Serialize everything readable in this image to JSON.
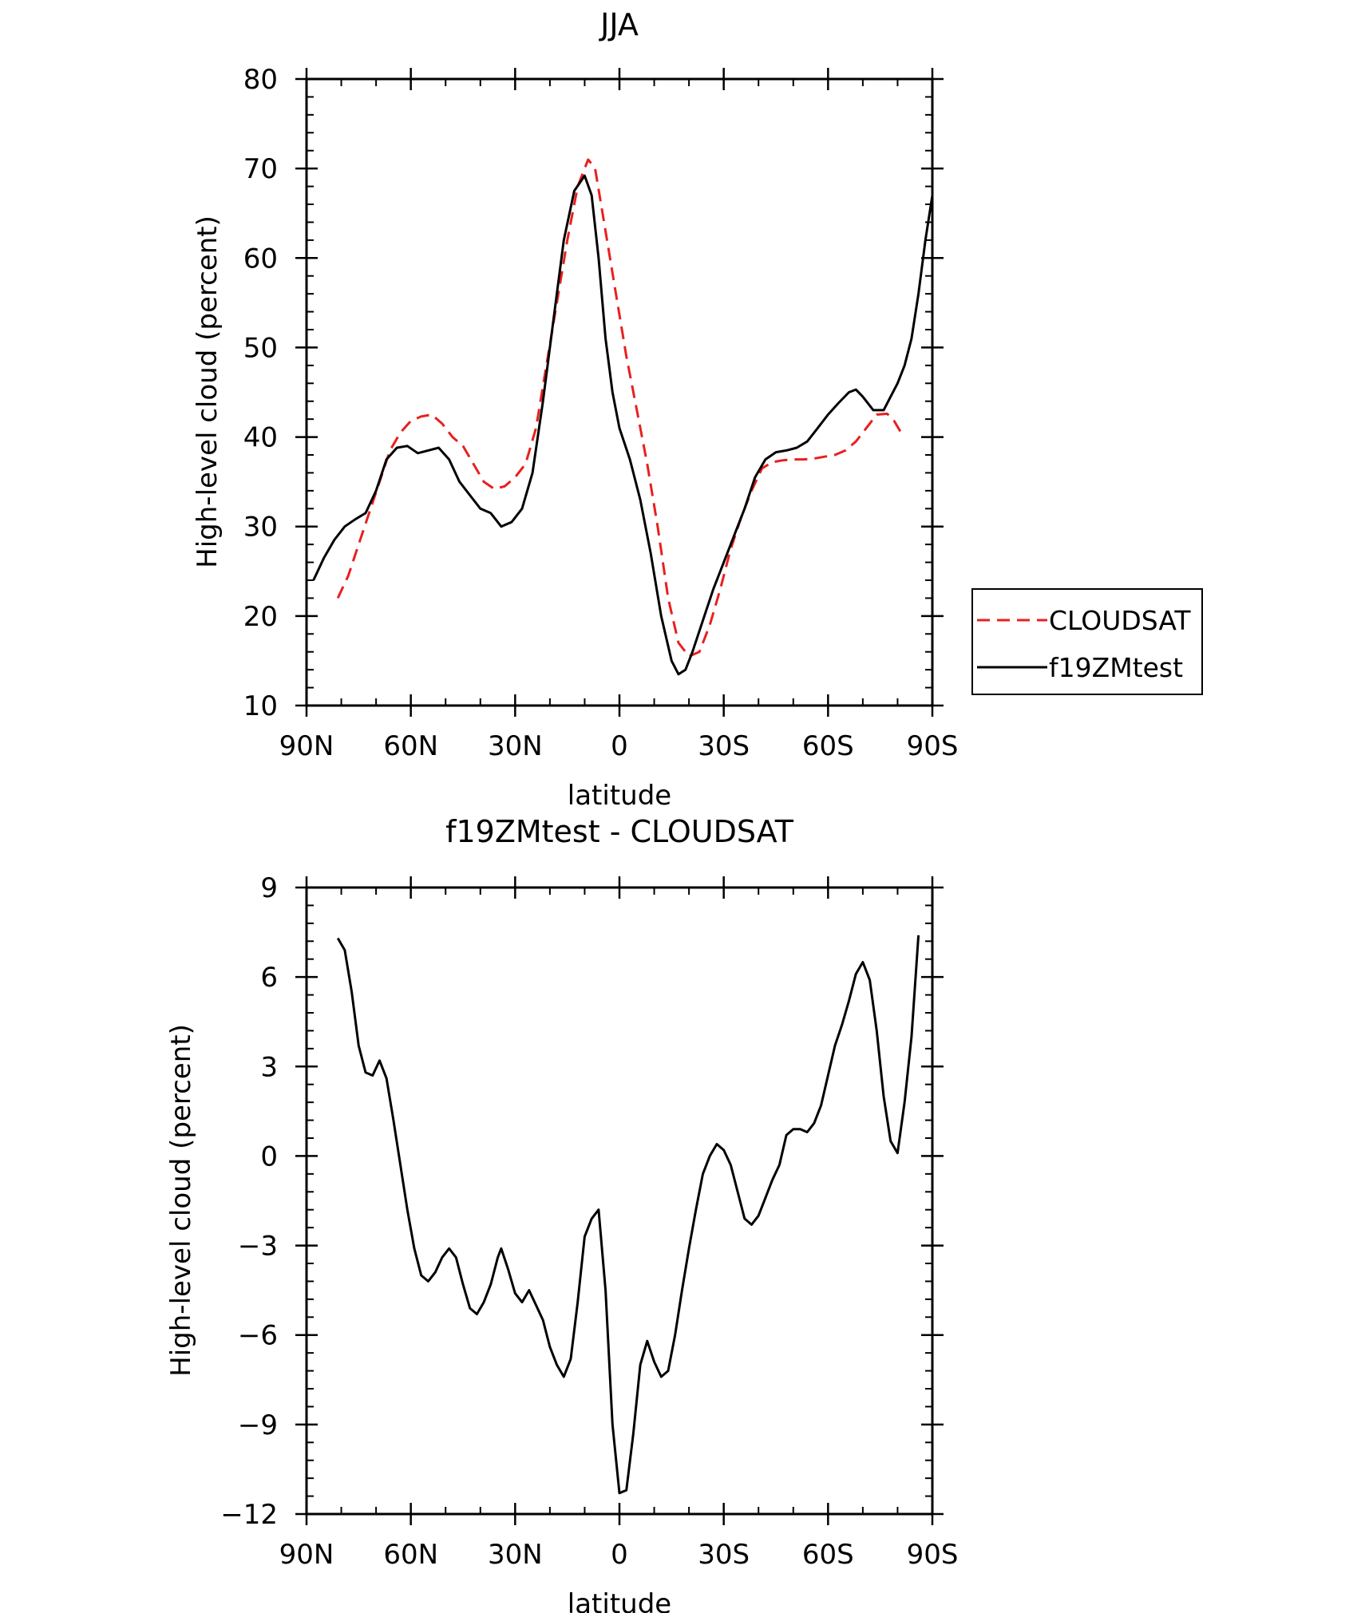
{
  "chart_data": [
    {
      "type": "line",
      "title": "JJA",
      "xlabel": "latitude",
      "ylabel": "High-level cloud (percent)",
      "xlim": [
        90,
        -90
      ],
      "ylim": [
        10,
        80
      ],
      "yticks": [
        "80",
        "70",
        "60",
        "50",
        "40",
        "30",
        "20",
        "10"
      ],
      "xticks": [
        "90N",
        "60N",
        "30N",
        "0",
        "30S",
        "60S",
        "90S"
      ],
      "grid": false,
      "legend": {
        "position": "right",
        "entries": [
          {
            "label": "CLOUDSAT",
            "color": "#e8201e",
            "dash": "dashed"
          },
          {
            "label": "f19ZMtest",
            "color": "#000000",
            "dash": "solid"
          }
        ]
      },
      "series": [
        {
          "name": "CLOUDSAT",
          "color": "#e8201e",
          "dash": "dashed",
          "points": [
            [
              81,
              22
            ],
            [
              78,
              24.5
            ],
            [
              75,
              28
            ],
            [
              72,
              31.5
            ],
            [
              69,
              35
            ],
            [
              66,
              38.5
            ],
            [
              63,
              40.5
            ],
            [
              60,
              41.8
            ],
            [
              57,
              42.3
            ],
            [
              54,
              42.5
            ],
            [
              51,
              41.5
            ],
            [
              48,
              40
            ],
            [
              45,
              39
            ],
            [
              42,
              37
            ],
            [
              39,
              35
            ],
            [
              36,
              34.2
            ],
            [
              33,
              34.5
            ],
            [
              30,
              35.5
            ],
            [
              27,
              37
            ],
            [
              24,
              41
            ],
            [
              21,
              48
            ],
            [
              18,
              55
            ],
            [
              15,
              62
            ],
            [
              12,
              68
            ],
            [
              9,
              71
            ],
            [
              7,
              70
            ],
            [
              4,
              63
            ],
            [
              1,
              56
            ],
            [
              -2,
              49
            ],
            [
              -5,
              43
            ],
            [
              -8,
              37
            ],
            [
              -11,
              30
            ],
            [
              -14,
              22
            ],
            [
              -17,
              17
            ],
            [
              -20,
              15.5
            ],
            [
              -23,
              16
            ],
            [
              -26,
              19
            ],
            [
              -29,
              23
            ],
            [
              -32,
              27.5
            ],
            [
              -35,
              31
            ],
            [
              -38,
              34
            ],
            [
              -41,
              36.5
            ],
            [
              -44,
              37.2
            ],
            [
              -47,
              37.4
            ],
            [
              -50,
              37.5
            ],
            [
              -53,
              37.5
            ],
            [
              -56,
              37.6
            ],
            [
              -59,
              37.8
            ],
            [
              -62,
              38
            ],
            [
              -65,
              38.5
            ],
            [
              -68,
              39.5
            ],
            [
              -71,
              41
            ],
            [
              -74,
              42.5
            ],
            [
              -77,
              42.6
            ],
            [
              -79,
              41.8
            ],
            [
              -81,
              40.5
            ]
          ]
        },
        {
          "name": "f19ZMtest",
          "color": "#000000",
          "dash": "solid",
          "points": [
            [
              88,
              24
            ],
            [
              85,
              26.5
            ],
            [
              82,
              28.5
            ],
            [
              79,
              30
            ],
            [
              76,
              30.8
            ],
            [
              73,
              31.5
            ],
            [
              70,
              34
            ],
            [
              67,
              37.5
            ],
            [
              64,
              38.8
            ],
            [
              61,
              39
            ],
            [
              58,
              38.2
            ],
            [
              55,
              38.5
            ],
            [
              52,
              38.8
            ],
            [
              49,
              37.5
            ],
            [
              46,
              35
            ],
            [
              43,
              33.5
            ],
            [
              40,
              32
            ],
            [
              37,
              31.5
            ],
            [
              34,
              30
            ],
            [
              31,
              30.5
            ],
            [
              28,
              32
            ],
            [
              25,
              36
            ],
            [
              22,
              44
            ],
            [
              19,
              53
            ],
            [
              16,
              62
            ],
            [
              13,
              67.5
            ],
            [
              10,
              69.2
            ],
            [
              8,
              67
            ],
            [
              6,
              60
            ],
            [
              4,
              51
            ],
            [
              2,
              45
            ],
            [
              0,
              41
            ],
            [
              -3,
              37.5
            ],
            [
              -6,
              33
            ],
            [
              -9,
              27
            ],
            [
              -12,
              20
            ],
            [
              -15,
              15
            ],
            [
              -17,
              13.5
            ],
            [
              -19,
              14
            ],
            [
              -21,
              16
            ],
            [
              -24,
              19.5
            ],
            [
              -27,
              23
            ],
            [
              -30,
              26
            ],
            [
              -33,
              29
            ],
            [
              -36,
              32
            ],
            [
              -39,
              35.5
            ],
            [
              -42,
              37.5
            ],
            [
              -45,
              38.3
            ],
            [
              -48,
              38.5
            ],
            [
              -51,
              38.8
            ],
            [
              -54,
              39.5
            ],
            [
              -57,
              41
            ],
            [
              -60,
              42.5
            ],
            [
              -63,
              43.8
            ],
            [
              -66,
              45
            ],
            [
              -68,
              45.3
            ],
            [
              -70,
              44.5
            ],
            [
              -73,
              43
            ],
            [
              -76,
              43
            ],
            [
              -78,
              44.5
            ],
            [
              -80,
              46
            ],
            [
              -82,
              48
            ],
            [
              -84,
              51
            ],
            [
              -86,
              56
            ],
            [
              -88,
              62
            ],
            [
              -90,
              67
            ]
          ]
        }
      ]
    },
    {
      "type": "line",
      "title": "f19ZMtest - CLOUDSAT",
      "xlabel": "latitude",
      "ylabel": "High-level cloud (percent)",
      "xlim": [
        90,
        -90
      ],
      "ylim": [
        -12,
        9
      ],
      "yticks": [
        "9",
        "6",
        "3",
        "0",
        "−3",
        "−6",
        "−9",
        "−12"
      ],
      "xticks": [
        "90N",
        "60N",
        "30N",
        "0",
        "30S",
        "60S",
        "90S"
      ],
      "grid": false,
      "series": [
        {
          "color": "#000000",
          "dash": "solid",
          "points": [
            [
              81,
              7.3
            ],
            [
              79,
              6.9
            ],
            [
              77,
              5.5
            ],
            [
              75,
              3.7
            ],
            [
              73,
              2.8
            ],
            [
              71,
              2.7
            ],
            [
              69,
              3.2
            ],
            [
              67,
              2.6
            ],
            [
              65,
              1.2
            ],
            [
              63,
              -0.3
            ],
            [
              61,
              -1.8
            ],
            [
              59,
              -3.1
            ],
            [
              57,
              -4
            ],
            [
              55,
              -4.2
            ],
            [
              53,
              -3.9
            ],
            [
              51,
              -3.4
            ],
            [
              49,
              -3.1
            ],
            [
              47,
              -3.4
            ],
            [
              45,
              -4.3
            ],
            [
              43,
              -5.1
            ],
            [
              41,
              -5.3
            ],
            [
              39,
              -4.9
            ],
            [
              37,
              -4.3
            ],
            [
              35,
              -3.4
            ],
            [
              34,
              -3.1
            ],
            [
              32,
              -3.8
            ],
            [
              30,
              -4.6
            ],
            [
              28,
              -4.9
            ],
            [
              26,
              -4.5
            ],
            [
              24,
              -5
            ],
            [
              22,
              -5.5
            ],
            [
              20,
              -6.4
            ],
            [
              18,
              -7
            ],
            [
              16,
              -7.4
            ],
            [
              14,
              -6.8
            ],
            [
              12,
              -4.9
            ],
            [
              10,
              -2.7
            ],
            [
              8,
              -2.1
            ],
            [
              6,
              -1.8
            ],
            [
              4,
              -4.5
            ],
            [
              2,
              -9
            ],
            [
              0,
              -11.3
            ],
            [
              -2,
              -11.2
            ],
            [
              -4,
              -9.3
            ],
            [
              -6,
              -7
            ],
            [
              -8,
              -6.2
            ],
            [
              -10,
              -6.9
            ],
            [
              -12,
              -7.4
            ],
            [
              -14,
              -7.2
            ],
            [
              -16,
              -6
            ],
            [
              -18,
              -4.5
            ],
            [
              -20,
              -3.1
            ],
            [
              -22,
              -1.8
            ],
            [
              -24,
              -0.6
            ],
            [
              -26,
              0
            ],
            [
              -28,
              0.4
            ],
            [
              -30,
              0.2
            ],
            [
              -32,
              -0.3
            ],
            [
              -34,
              -1.2
            ],
            [
              -36,
              -2.1
            ],
            [
              -38,
              -2.3
            ],
            [
              -40,
              -2
            ],
            [
              -42,
              -1.4
            ],
            [
              -44,
              -0.8
            ],
            [
              -46,
              -0.3
            ],
            [
              -48,
              0.7
            ],
            [
              -50,
              0.9
            ],
            [
              -52,
              0.9
            ],
            [
              -54,
              0.8
            ],
            [
              -56,
              1.1
            ],
            [
              -58,
              1.7
            ],
            [
              -60,
              2.7
            ],
            [
              -62,
              3.7
            ],
            [
              -64,
              4.4
            ],
            [
              -66,
              5.2
            ],
            [
              -68,
              6.1
            ],
            [
              -70,
              6.5
            ],
            [
              -72,
              5.9
            ],
            [
              -74,
              4.2
            ],
            [
              -76,
              2
            ],
            [
              -78,
              0.5
            ],
            [
              -80,
              0.1
            ],
            [
              -82,
              1.8
            ],
            [
              -84,
              4
            ],
            [
              -86,
              7.4
            ]
          ]
        }
      ]
    }
  ]
}
